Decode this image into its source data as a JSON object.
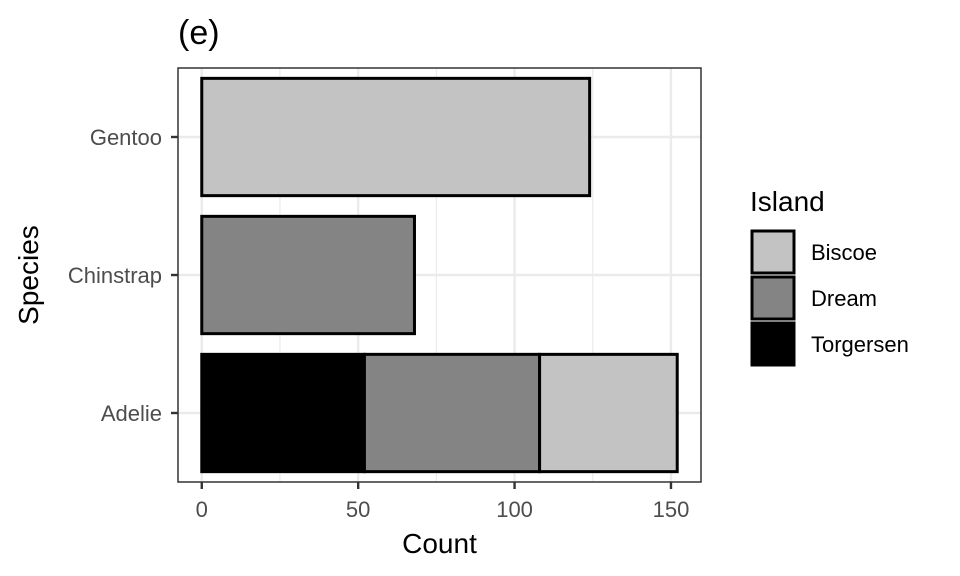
{
  "chart_data": {
    "type": "bar",
    "orientation": "horizontal",
    "stacked": true,
    "title": "(e)",
    "xlabel": "Count",
    "ylabel": "Species",
    "categories": [
      "Adelie",
      "Chinstrap",
      "Gentoo"
    ],
    "series": [
      {
        "name": "Torgersen",
        "color": "#000000",
        "values": [
          52,
          0,
          0
        ]
      },
      {
        "name": "Dream",
        "color": "#848484",
        "values": [
          56,
          68,
          0
        ]
      },
      {
        "name": "Biscoe",
        "color": "#c3c3c3",
        "values": [
          44,
          0,
          124
        ]
      }
    ],
    "xlim": [
      -7.6,
      159.6
    ],
    "xticks": [
      0,
      50,
      100,
      150
    ],
    "grid": true,
    "legend": {
      "title": "Island",
      "position": "right",
      "entries": [
        "Biscoe",
        "Dream",
        "Torgersen"
      ]
    }
  }
}
